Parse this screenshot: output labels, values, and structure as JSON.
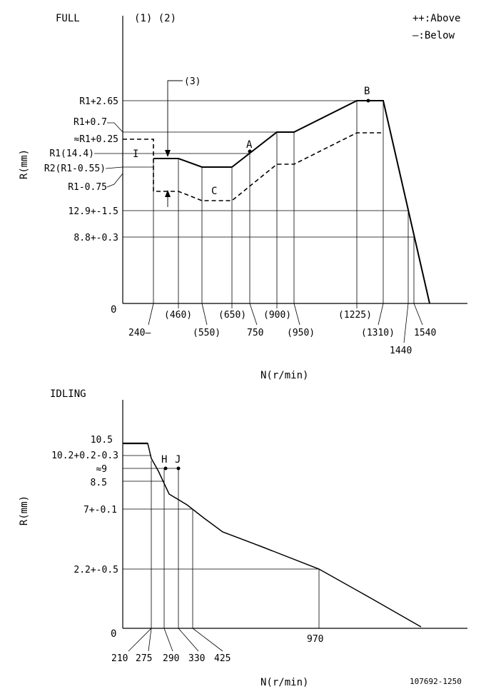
{
  "full": {
    "title": "FULL",
    "notes": "(1) (2)",
    "legend": [
      "++:Above",
      "—:Below"
    ],
    "y_axis_label": "R(mm)",
    "x_axis_label": "N(r/min)",
    "origin_label": "0",
    "callout": "(3)",
    "marker_I": "I",
    "y_labels": [
      {
        "id": "y_r1_265",
        "text": "R1+2.65"
      },
      {
        "id": "y_r1_07",
        "text": "R1+0.7"
      },
      {
        "id": "y_r1_025",
        "text": "≈R1+0.25"
      },
      {
        "id": "y_r1",
        "text": "R1(14.4)"
      },
      {
        "id": "y_r2",
        "text": "R2(R1-0.55)"
      },
      {
        "id": "y_r1_075",
        "text": "R1-0.75"
      },
      {
        "id": "y_129",
        "text": "12.9+-1.5"
      },
      {
        "id": "y_88",
        "text": "8.8+-0.3"
      }
    ],
    "x_labels": [
      "240—",
      "(460)",
      "(550)",
      "(650)",
      "750",
      "(900)",
      "(950)",
      "(1225)",
      "(1310)",
      "1440",
      "1540"
    ],
    "points": [
      {
        "name": "A",
        "x": 750
      },
      {
        "name": "B",
        "x": 1225
      },
      {
        "name": "C",
        "x": 600
      }
    ]
  },
  "idling": {
    "title": "IDLING",
    "y_axis_label": "R(mm)",
    "x_axis_label": "N(r/min)",
    "origin_label": "0",
    "y_labels": [
      "10.5",
      "10.2+0.2-0.3",
      "≈9",
      "8.5",
      "7+-0.1",
      "2.2+-0.5"
    ],
    "x_labels": [
      "210",
      "275",
      "290",
      "330",
      "425",
      "970"
    ],
    "points": [
      {
        "name": "H",
        "x": 290
      },
      {
        "name": "J",
        "x": 330
      }
    ]
  },
  "doc_number": "107692-1250",
  "chart_data": [
    {
      "type": "line",
      "title": "FULL",
      "xlabel": "N(r/min)",
      "ylabel": "R(mm)",
      "series": [
        {
          "x": [
            240,
            460,
            550,
            650,
            750,
            900,
            950,
            1225,
            1310,
            1440,
            1540,
            1590
          ],
          "y": [
            14.4,
            14.4,
            13.85,
            13.85,
            14.4,
            15.1,
            15.1,
            17.05,
            17.05,
            12.9,
            8.8,
            0
          ]
        },
        {
          "x": [
            240,
            460,
            550,
            650,
            750,
            900,
            950,
            1225,
            1310,
            1440
          ],
          "y": [
            13.65,
            13.65,
            13.1,
            13.1,
            13.65,
            14.4,
            14.4,
            15.6,
            15.6,
            12.9
          ]
        }
      ]
    },
    {
      "type": "line",
      "title": "IDLING",
      "xlabel": "N(r/min)",
      "ylabel": "R(mm)",
      "series": [
        {
          "x": [
            0,
            210,
            275,
            290,
            330,
            425,
            550,
            970,
            1200
          ],
          "y": [
            10.5,
            10.5,
            8.5,
            7.6,
            7.0,
            5.4,
            4.5,
            2.2,
            0
          ]
        }
      ]
    }
  ]
}
